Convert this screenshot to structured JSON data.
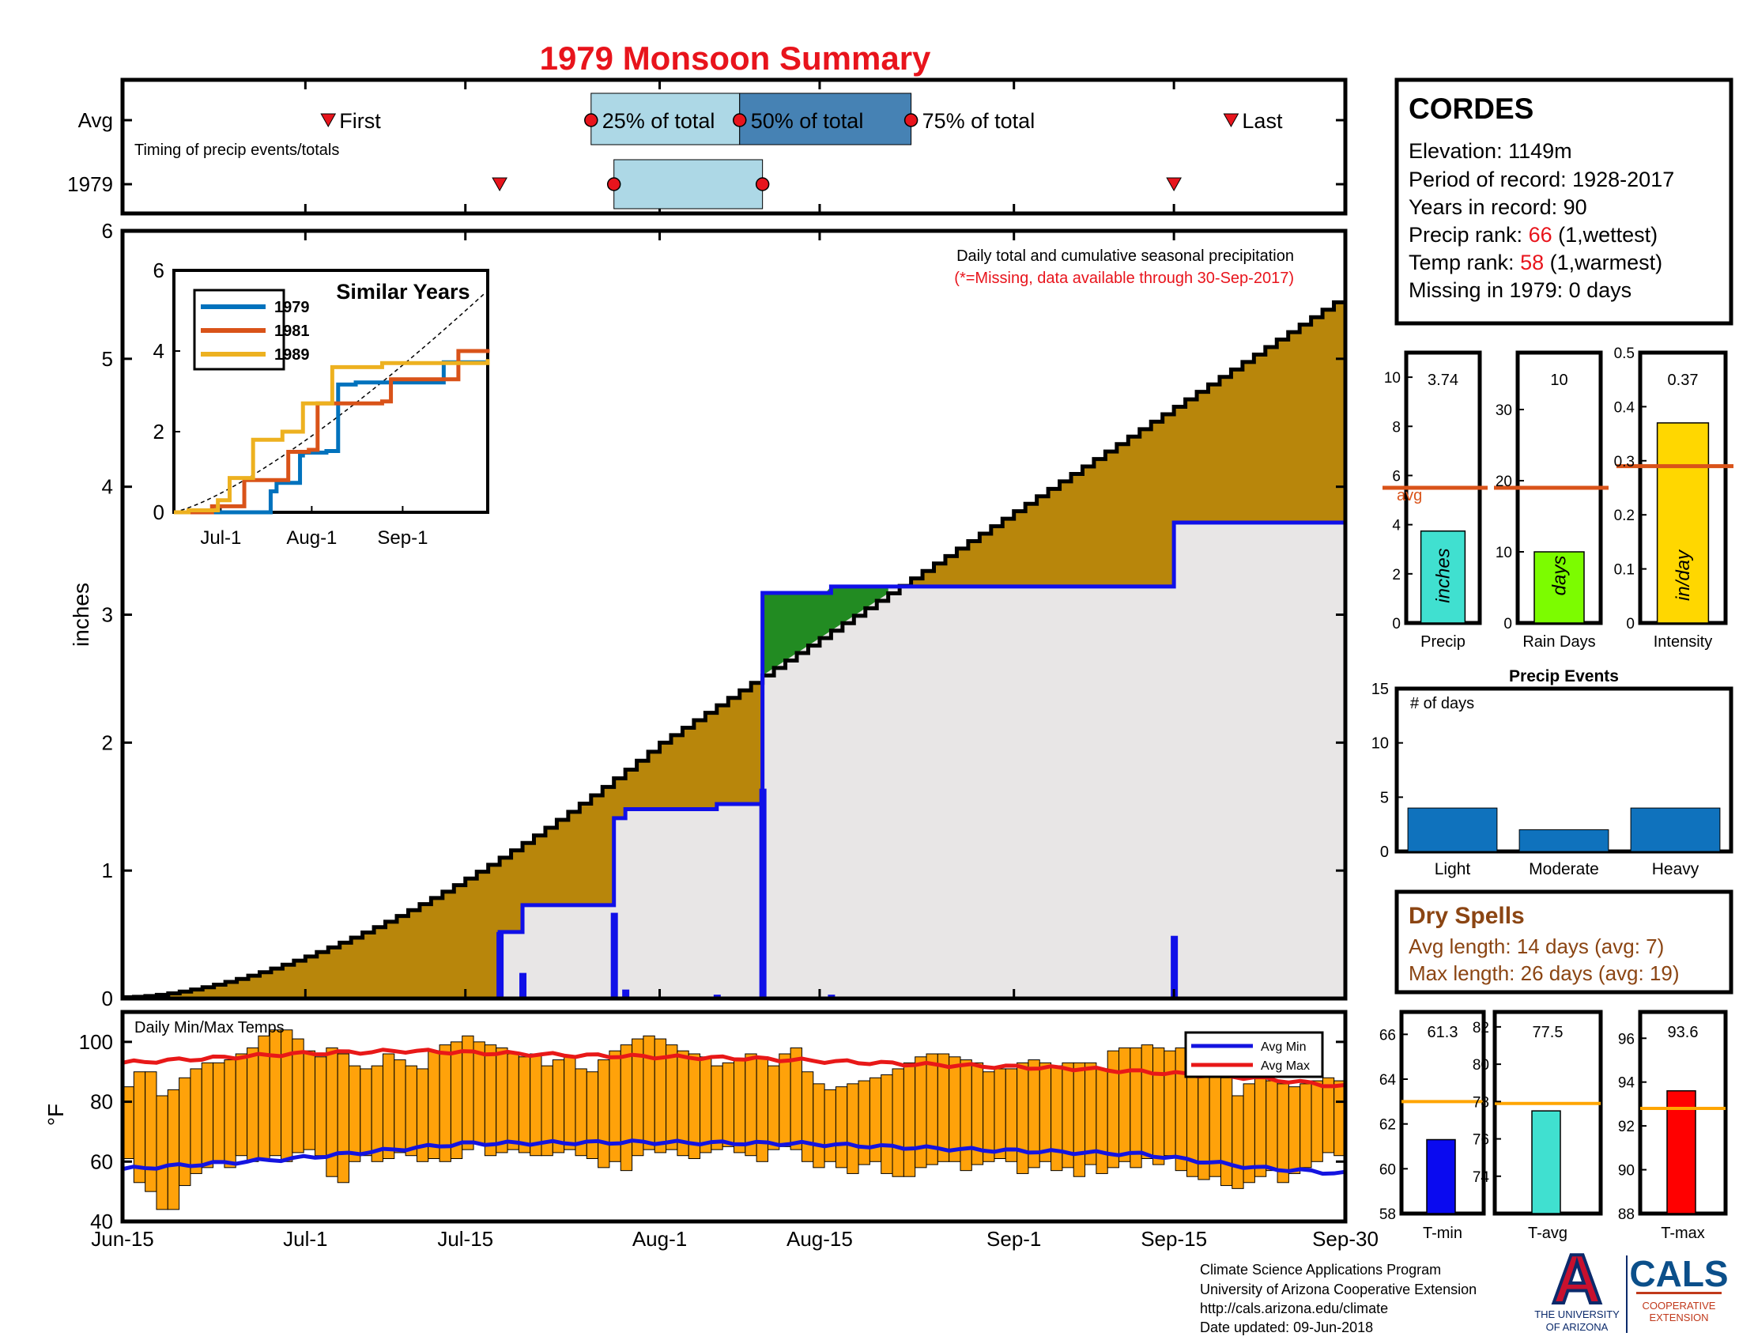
{
  "title": "1979 Monsoon Summary",
  "colors": {
    "title": "#e8141c",
    "area_fill": "#b8860b",
    "avg_fill": "#e8e6e6",
    "excess_fill": "#228b22",
    "cum_line": "#000000",
    "avg_line": "#1010e8",
    "temp_bar": "#ffa20a",
    "avg_min_line": "#1414e0",
    "avg_max_line": "#e81818",
    "light_blue": "#add8e6",
    "steel_blue": "#4682b4",
    "event_bar": "#0f72bd",
    "precip_bar": "#40e0d0",
    "rain_days_bar": "#7cfc00",
    "intensity_bar": "#ffd700",
    "tmin_bar": "#0a0af0",
    "tavg_bar": "#40e0d0",
    "tmax_bar": "#ff0000",
    "avg_ref_line": "#d95319",
    "temp_ref_line": "#ffa500",
    "dry_text": "#8b4513",
    "rank_red": "#e8141c",
    "navy": "#0b2a6b",
    "arizona_red": "#c8102e",
    "cals_blue": "#0b4f8a",
    "cals_orange": "#c0391b"
  },
  "timing": {
    "row_avg": "Avg",
    "row_year": "1979",
    "caption": "Timing of precip events/totals",
    "first_label": "First",
    "last_label": "Last",
    "p25_label": "25% of total",
    "p50_label": "50% of total",
    "p75_label": "75% of total",
    "avg": {
      "first": "2023-07-03",
      "p25": "2023-07-26",
      "p50": "2023-08-08",
      "p75": "2023-08-23",
      "last": "2023-09-20"
    },
    "year": {
      "first": "2023-07-18",
      "p25": "2023-07-28",
      "p50": "2023-08-10",
      "last": "2023-09-15"
    }
  },
  "chart_data": [
    {
      "type": "area",
      "name": "main",
      "xlabel": "",
      "ylabel": "inches",
      "ylim": [
        0,
        6
      ],
      "xlim": [
        "2023-06-15",
        "2023-09-30"
      ],
      "xticklabels": [
        "Jun-15",
        "Jul-1",
        "Jul-15",
        "Aug-1",
        "Aug-15",
        "Sep-1",
        "Sep-15",
        "Sep-30"
      ],
      "yticks": [
        0,
        1,
        2,
        3,
        4,
        5,
        6
      ],
      "annotation": "Daily total and cumulative seasonal precipitation",
      "annotation_note": "(*=Missing, data available through 30-Sep-2017)",
      "avg_cumulative": {
        "start": "2023-06-15",
        "start_value": 0.01,
        "mid": "2023-08-01",
        "mid_value": 2.0,
        "end": "2023-09-30",
        "end_value": 5.5
      },
      "year_cumulative": [
        [
          "2023-06-15",
          0
        ],
        [
          "2023-07-18",
          0.52
        ],
        [
          "2023-07-20",
          0.73
        ],
        [
          "2023-07-28",
          1.41
        ],
        [
          "2023-07-29",
          1.48
        ],
        [
          "2023-08-06",
          1.52
        ],
        [
          "2023-08-10",
          3.17
        ],
        [
          "2023-08-16",
          3.22
        ],
        [
          "2023-09-15",
          3.72
        ],
        [
          "2023-09-30",
          3.72
        ]
      ],
      "daily_precip": [
        [
          "2023-07-18",
          0.52
        ],
        [
          "2023-07-20",
          0.2
        ],
        [
          "2023-07-28",
          0.67
        ],
        [
          "2023-07-29",
          0.07
        ],
        [
          "2023-08-06",
          0.03
        ],
        [
          "2023-08-10",
          1.64
        ],
        [
          "2023-08-16",
          0.03
        ],
        [
          "2023-09-15",
          0.49
        ]
      ]
    },
    {
      "type": "line",
      "name": "similar-years",
      "title": "Similar Years",
      "ylim": [
        0,
        6
      ],
      "yticks": [
        0,
        2,
        4,
        6
      ],
      "xticklabels": [
        "Jul-1",
        "Aug-1",
        "Sep-1"
      ],
      "xlim": [
        "2023-06-15",
        "2023-09-30"
      ],
      "series": [
        {
          "name": "1979",
          "color": "#0072bd",
          "points": [
            [
              "2023-06-15",
              0
            ],
            [
              "2023-07-18",
              0.52
            ],
            [
              "2023-07-20",
              0.73
            ],
            [
              "2023-07-28",
              1.41
            ],
            [
              "2023-07-29",
              1.48
            ],
            [
              "2023-08-06",
              1.52
            ],
            [
              "2023-08-10",
              3.17
            ],
            [
              "2023-08-16",
              3.22
            ],
            [
              "2023-09-15",
              3.72
            ],
            [
              "2023-09-30",
              3.72
            ]
          ]
        },
        {
          "name": "1981",
          "color": "#d95319",
          "points": [
            [
              "2023-06-15",
              0
            ],
            [
              "2023-06-28",
              0.15
            ],
            [
              "2023-07-09",
              0.8
            ],
            [
              "2023-07-20",
              0.8
            ],
            [
              "2023-07-24",
              1.5
            ],
            [
              "2023-07-31",
              1.55
            ],
            [
              "2023-08-03",
              2.7
            ],
            [
              "2023-08-25",
              2.75
            ],
            [
              "2023-08-28",
              3.3
            ],
            [
              "2023-09-15",
              3.3
            ],
            [
              "2023-09-20",
              4.0
            ],
            [
              "2023-09-30",
              4.05
            ]
          ]
        },
        {
          "name": "1989",
          "color": "#edb120",
          "points": [
            [
              "2023-06-15",
              0
            ],
            [
              "2023-06-20",
              0.05
            ],
            [
              "2023-06-30",
              0.3
            ],
            [
              "2023-07-04",
              0.85
            ],
            [
              "2023-07-12",
              1.8
            ],
            [
              "2023-07-22",
              2.0
            ],
            [
              "2023-07-29",
              2.7
            ],
            [
              "2023-08-08",
              3.6
            ],
            [
              "2023-08-25",
              3.7
            ],
            [
              "2023-09-30",
              3.8
            ]
          ]
        }
      ],
      "avg_dashed": {
        "start_value": 0.01,
        "end_value": 5.5
      }
    },
    {
      "type": "bar",
      "name": "daily-temps",
      "title": "Daily Min/Max Temps",
      "ylabel": "°F",
      "ylim": [
        40,
        110
      ],
      "yticks": [
        40,
        60,
        80,
        100
      ],
      "legend": [
        "Avg Min",
        "Avg Max"
      ],
      "legend_position": "top-right",
      "days_start": "2023-06-15",
      "tmax": [
        85,
        90,
        90,
        82,
        84,
        88,
        91,
        93,
        93,
        94,
        96,
        98,
        102,
        104,
        104,
        101,
        97,
        95,
        98,
        96,
        92,
        91,
        92,
        96,
        94,
        92,
        91,
        97,
        99,
        100,
        102,
        100,
        99,
        98,
        96,
        95,
        96,
        92,
        94,
        95,
        91,
        90,
        94,
        97,
        99,
        101,
        102,
        101,
        99,
        97,
        96,
        95,
        92,
        93,
        94,
        96,
        95,
        92,
        96,
        98,
        90,
        86,
        84,
        85,
        86,
        87,
        88,
        89,
        91,
        93,
        95,
        96,
        96,
        95,
        94,
        93,
        90,
        91,
        91,
        93,
        94,
        93,
        92,
        93,
        93,
        93,
        91,
        97,
        98,
        98,
        99,
        98,
        97,
        98,
        97,
        95,
        93,
        88,
        82,
        86,
        90,
        87,
        86,
        85,
        86,
        87,
        88,
        87
      ],
      "tmin": [
        61,
        53,
        50,
        44,
        44,
        52,
        56,
        58,
        60,
        58,
        62,
        60,
        61,
        62,
        60,
        63,
        64,
        62,
        55,
        53,
        60,
        62,
        60,
        61,
        63,
        62,
        60,
        61,
        60,
        61,
        64,
        66,
        62,
        63,
        64,
        63,
        62,
        62,
        63,
        64,
        62,
        61,
        58,
        60,
        57,
        62,
        64,
        63,
        64,
        62,
        61,
        63,
        64,
        65,
        63,
        62,
        60,
        64,
        65,
        64,
        60,
        58,
        60,
        58,
        56,
        59,
        60,
        56,
        55,
        55,
        58,
        59,
        60,
        60,
        57,
        59,
        60,
        61,
        60,
        56,
        58,
        60,
        57,
        58,
        55,
        59,
        56,
        58,
        60,
        58,
        61,
        59,
        62,
        57,
        55,
        54,
        55,
        52,
        51,
        53,
        55,
        57,
        53,
        56,
        58,
        60,
        63,
        62
      ],
      "avg_min_line": [
        [
          0,
          57.5
        ],
        [
          15,
          61
        ],
        [
          30,
          66
        ],
        [
          45,
          66.5
        ],
        [
          60,
          66
        ],
        [
          75,
          64
        ],
        [
          90,
          62.5
        ],
        [
          100,
          58
        ],
        [
          108,
          56
        ]
      ],
      "avg_max_line": [
        [
          0,
          93
        ],
        [
          15,
          96
        ],
        [
          25,
          97
        ],
        [
          40,
          95.5
        ],
        [
          55,
          94.5
        ],
        [
          70,
          92.5
        ],
        [
          85,
          91
        ],
        [
          100,
          88
        ],
        [
          108,
          85
        ]
      ]
    },
    {
      "type": "bar",
      "name": "precip-stats",
      "panels": [
        {
          "label": "Precip",
          "value": 3.74,
          "value_text": "3.74",
          "unit": "inches",
          "avg": 5.5,
          "ylim": [
            0,
            11
          ],
          "yticks": [
            0,
            2,
            4,
            6,
            8,
            10
          ],
          "avg_label": "avg"
        },
        {
          "label": "Rain Days",
          "value": 10,
          "value_text": "10",
          "unit": "days",
          "avg": 19,
          "ylim": [
            0,
            38
          ],
          "yticks": [
            0,
            10,
            20,
            30
          ]
        },
        {
          "label": "Intensity",
          "value": 0.37,
          "value_text": "0.37",
          "unit": "in/day",
          "avg": 0.29,
          "ylim": [
            0,
            0.5
          ],
          "yticks": [
            0,
            0.1,
            0.2,
            0.3,
            0.4,
            0.5
          ]
        }
      ]
    },
    {
      "type": "bar",
      "name": "precip-events",
      "title": "Precip Events",
      "ylabel_inside": "# of days",
      "categories": [
        "Light",
        "Moderate",
        "Heavy"
      ],
      "values": [
        4,
        2,
        4
      ],
      "ylim": [
        0,
        15
      ],
      "yticks": [
        0,
        5,
        10,
        15
      ]
    },
    {
      "type": "bar",
      "name": "temp-stats",
      "panels": [
        {
          "label": "T-min",
          "value": 61.3,
          "value_text": "61.3",
          "avg": 63,
          "ylim": [
            58,
            67
          ],
          "yticks": [
            58,
            60,
            62,
            64,
            66
          ]
        },
        {
          "label": "T-avg",
          "value": 77.5,
          "value_text": "77.5",
          "avg": 77.9,
          "ylim": [
            72,
            82.8
          ],
          "yticks": [
            74,
            76,
            78,
            80,
            82
          ]
        },
        {
          "label": "T-max",
          "value": 93.6,
          "value_text": "93.6",
          "avg": 92.8,
          "ylim": [
            88,
            97.2
          ],
          "yticks": [
            88,
            90,
            92,
            94,
            96
          ]
        }
      ]
    }
  ],
  "station": {
    "name": "CORDES",
    "elevation": "Elevation: 1149m",
    "period": "Period of record: 1928-2017",
    "years": "Years in record: 90",
    "precip_rank_label": "Precip rank: ",
    "precip_rank_value": "66",
    "precip_rank_note": " (1,wettest)",
    "temp_rank_label": "Temp rank: ",
    "temp_rank_value": "58",
    "temp_rank_note": " (1,warmest)",
    "missing": "Missing in 1979: 0 days"
  },
  "dry_spells": {
    "title": "Dry Spells",
    "avg_length": "Avg length: 14 days (avg: 7)",
    "max_length": "Max length: 26 days (avg: 19)"
  },
  "footer": {
    "line1": "Climate Science Applications Program",
    "line2": "University of Arizona Cooperative Extension",
    "line3": "http://cals.arizona.edu/climate",
    "line4": " Date updated: 09-Jun-2018"
  },
  "logo": {
    "ua_line1": "THE UNIVERSITY",
    "ua_line2": "OF ARIZONA",
    "cals": "CALS",
    "cals_line1": "COOPERATIVE",
    "cals_line2": "EXTENSION"
  }
}
